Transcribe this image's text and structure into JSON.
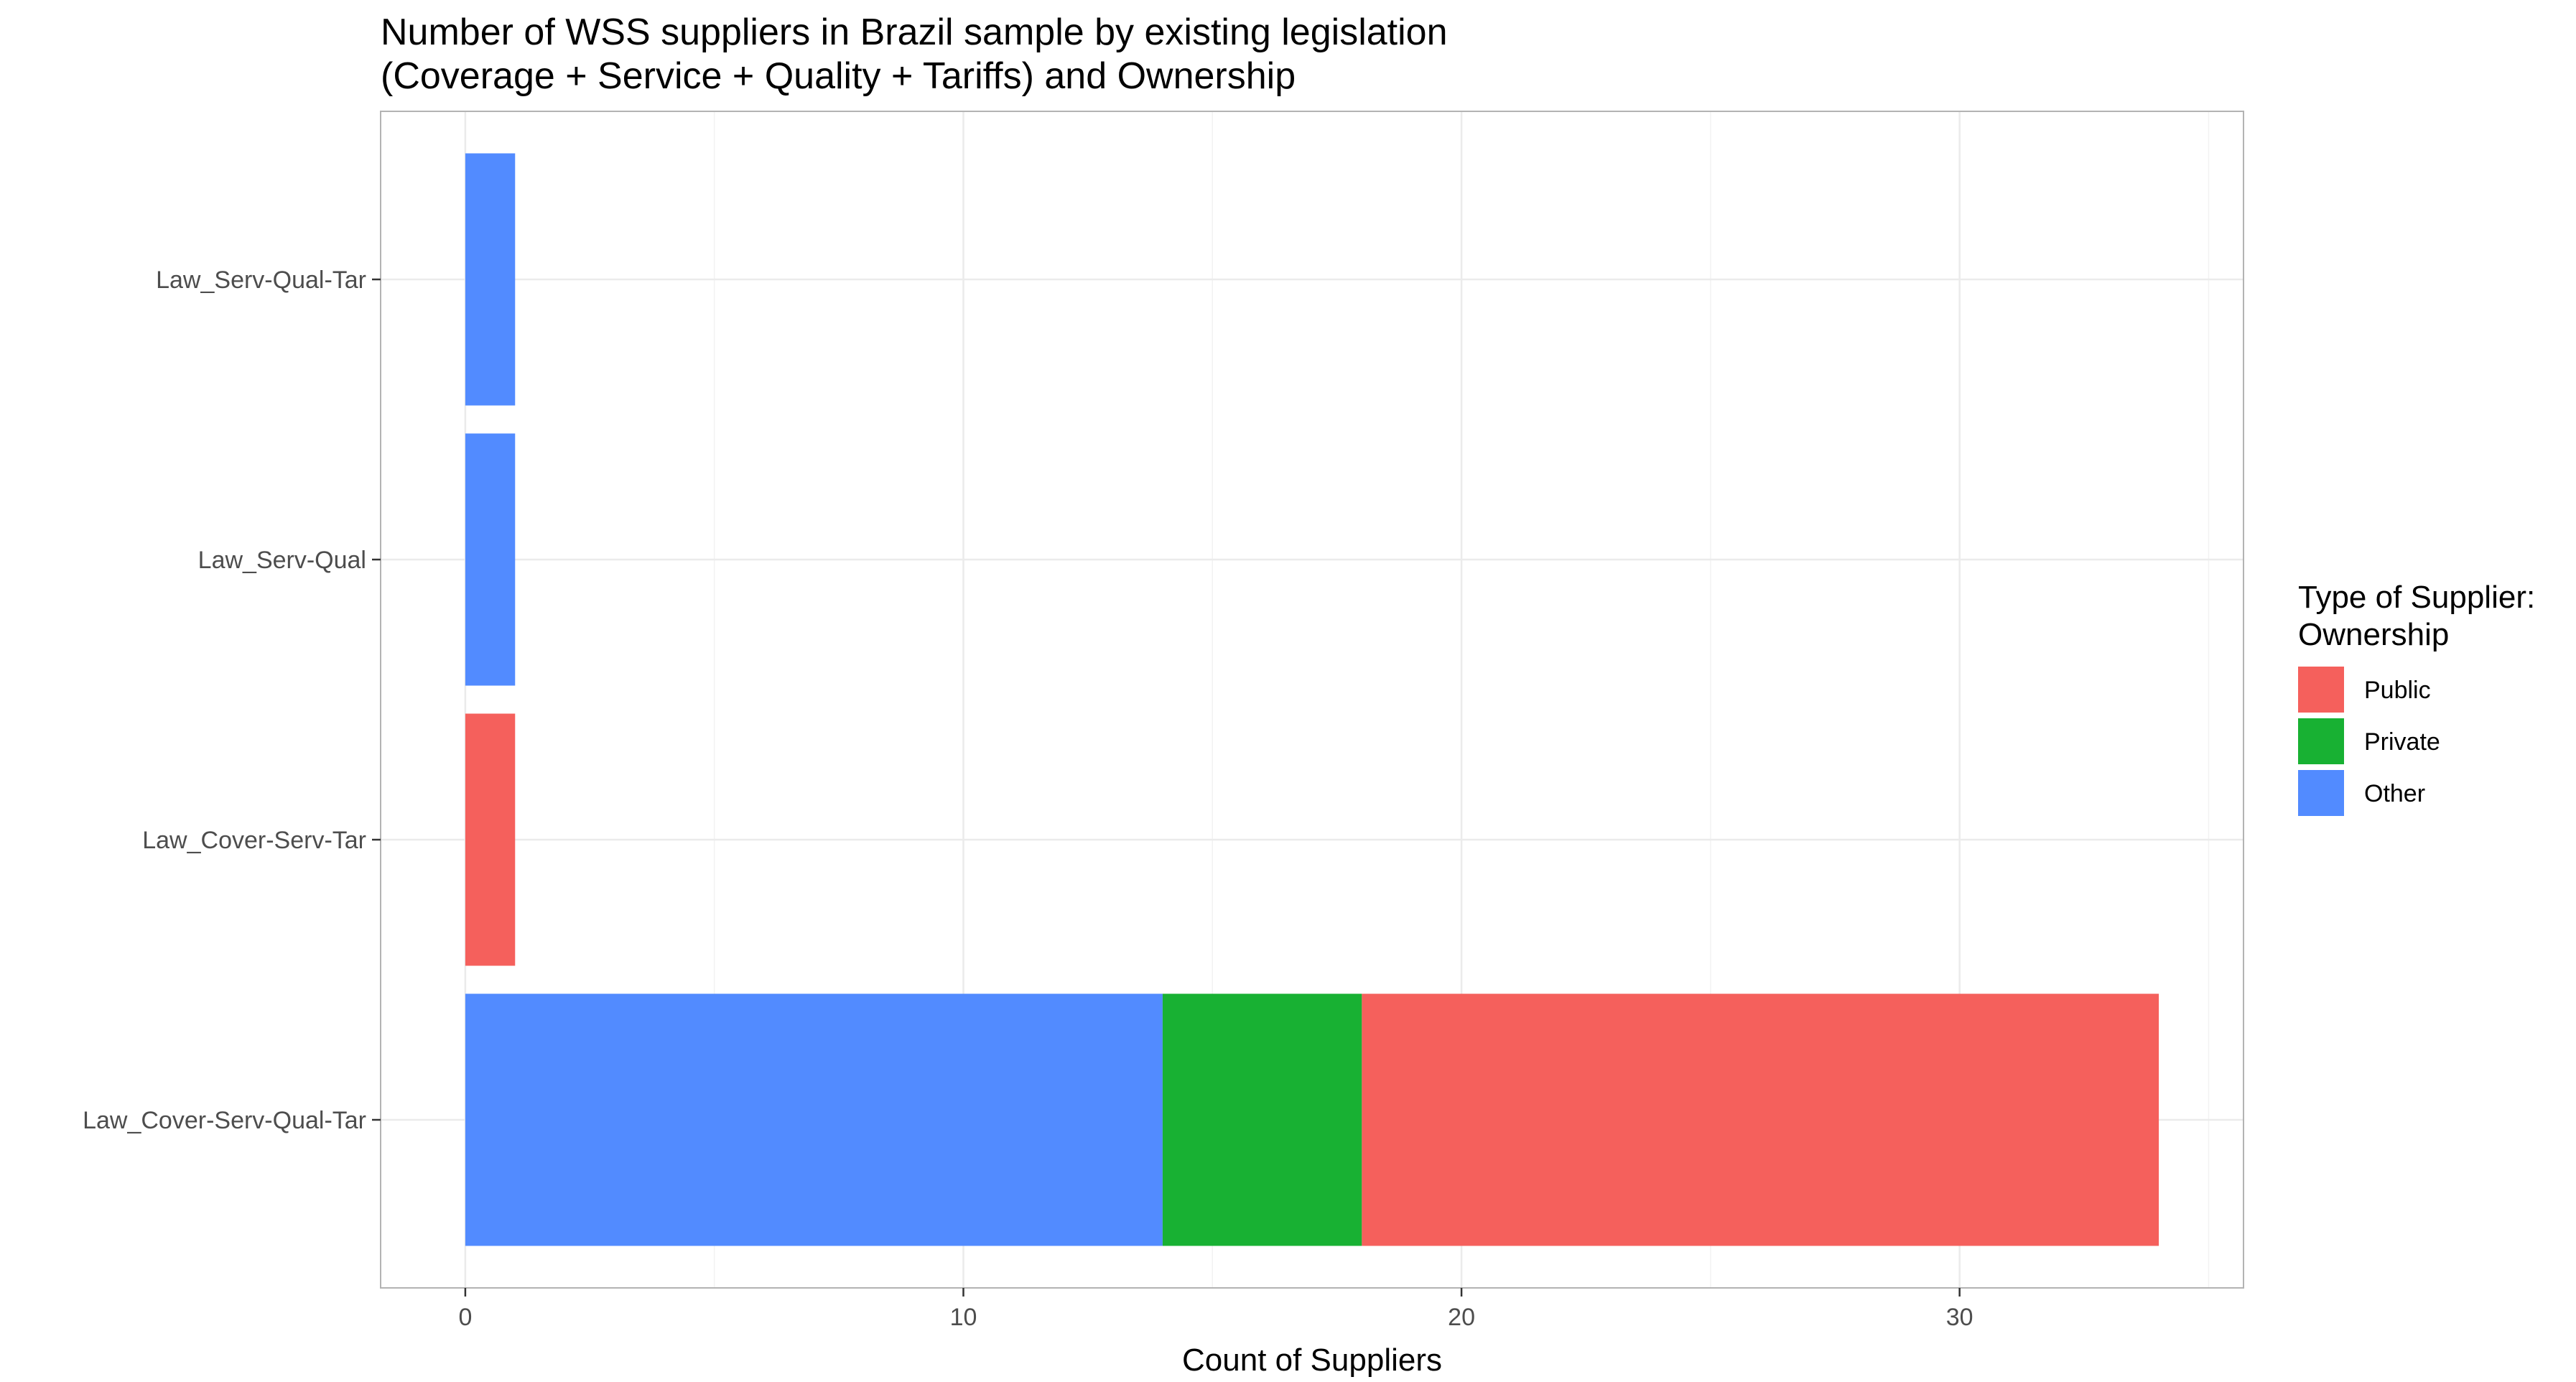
{
  "chart_data": {
    "type": "bar",
    "orientation": "horizontal",
    "stacked": true,
    "title": [
      "Number of WSS suppliers in Brazil sample by existing legislation",
      "(Coverage + Service + Quality + Tariffs) and Ownership"
    ],
    "xlabel": "Count of Suppliers",
    "ylabel": "",
    "categories": [
      "Law_Cover-Serv-Qual-Tar",
      "Law_Cover-Serv-Tar",
      "Law_Serv-Qual",
      "Law_Serv-Qual-Tar"
    ],
    "series": [
      {
        "name": "Other",
        "color": "#528BFF",
        "values": [
          14,
          0,
          1,
          1
        ]
      },
      {
        "name": "Private",
        "color": "#18B133",
        "values": [
          4,
          0,
          0,
          0
        ]
      },
      {
        "name": "Public",
        "color": "#F5605C",
        "values": [
          16,
          1,
          0,
          0
        ]
      }
    ],
    "xlim": [
      -1.7,
      35.7
    ],
    "xticks": [
      0,
      10,
      20,
      30
    ],
    "xtick_labels": [
      "0",
      "10",
      "20",
      "30"
    ],
    "grid": true,
    "legend": {
      "title": [
        "Type of Supplier:",
        "Ownership"
      ],
      "order": [
        "Public",
        "Private",
        "Other"
      ],
      "position": "right"
    }
  }
}
